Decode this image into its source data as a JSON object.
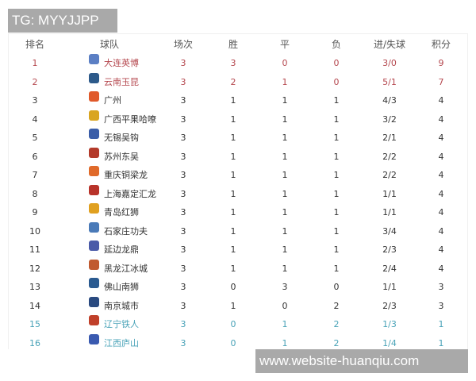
{
  "watermark_top": "TG: MYYJJPP",
  "watermark_bottom": "www.website-huanqiu.com",
  "headers": [
    "排名",
    "球队",
    "场次",
    "胜",
    "平",
    "负",
    "进/失球",
    "积分"
  ],
  "colors": {
    "promotion": "#b5484f",
    "relegation": "#4aa3b8",
    "normal": "#333333"
  },
  "rows": [
    {
      "rank": "1",
      "team": "大连英博",
      "p": "3",
      "w": "3",
      "d": "0",
      "l": "0",
      "gd": "3/0",
      "pts": "9",
      "zone": "red",
      "logo": "#5b7fc4"
    },
    {
      "rank": "2",
      "team": "云南玉昆",
      "p": "3",
      "w": "2",
      "d": "1",
      "l": "0",
      "gd": "5/1",
      "pts": "7",
      "zone": "red",
      "logo": "#2d5a8a"
    },
    {
      "rank": "3",
      "team": "广州",
      "p": "3",
      "w": "1",
      "d": "1",
      "l": "1",
      "gd": "4/3",
      "pts": "4",
      "zone": "",
      "logo": "#e0592a"
    },
    {
      "rank": "4",
      "team": "广西平果哈嘹",
      "p": "3",
      "w": "1",
      "d": "1",
      "l": "1",
      "gd": "3/2",
      "pts": "4",
      "zone": "",
      "logo": "#d9a520"
    },
    {
      "rank": "5",
      "team": "无锡吴钩",
      "p": "3",
      "w": "1",
      "d": "1",
      "l": "1",
      "gd": "2/1",
      "pts": "4",
      "zone": "",
      "logo": "#3a5da8"
    },
    {
      "rank": "6",
      "team": "苏州东吴",
      "p": "3",
      "w": "1",
      "d": "1",
      "l": "1",
      "gd": "2/2",
      "pts": "4",
      "zone": "",
      "logo": "#b33a2a"
    },
    {
      "rank": "7",
      "team": "重庆铜梁龙",
      "p": "3",
      "w": "1",
      "d": "1",
      "l": "1",
      "gd": "2/2",
      "pts": "4",
      "zone": "",
      "logo": "#e06a2a"
    },
    {
      "rank": "8",
      "team": "上海嘉定汇龙",
      "p": "3",
      "w": "1",
      "d": "1",
      "l": "1",
      "gd": "1/1",
      "pts": "4",
      "zone": "",
      "logo": "#b8332a"
    },
    {
      "rank": "9",
      "team": "青岛红狮",
      "p": "3",
      "w": "1",
      "d": "1",
      "l": "1",
      "gd": "1/1",
      "pts": "4",
      "zone": "",
      "logo": "#e0a020"
    },
    {
      "rank": "10",
      "team": "石家庄功夫",
      "p": "3",
      "w": "1",
      "d": "1",
      "l": "1",
      "gd": "3/4",
      "pts": "4",
      "zone": "",
      "logo": "#4a7ab8"
    },
    {
      "rank": "11",
      "team": "延边龙鼎",
      "p": "3",
      "w": "1",
      "d": "1",
      "l": "1",
      "gd": "2/3",
      "pts": "4",
      "zone": "",
      "logo": "#4a5aa8"
    },
    {
      "rank": "12",
      "team": "黑龙江冰城",
      "p": "3",
      "w": "1",
      "d": "1",
      "l": "1",
      "gd": "2/4",
      "pts": "4",
      "zone": "",
      "logo": "#c05a30"
    },
    {
      "rank": "13",
      "team": "佛山南狮",
      "p": "3",
      "w": "0",
      "d": "3",
      "l": "0",
      "gd": "1/1",
      "pts": "3",
      "zone": "",
      "logo": "#2a5a90"
    },
    {
      "rank": "14",
      "team": "南京城市",
      "p": "3",
      "w": "1",
      "d": "0",
      "l": "2",
      "gd": "2/3",
      "pts": "3",
      "zone": "",
      "logo": "#2a4a80"
    },
    {
      "rank": "15",
      "team": "辽宁铁人",
      "p": "3",
      "w": "0",
      "d": "1",
      "l": "2",
      "gd": "1/3",
      "pts": "1",
      "zone": "teal",
      "logo": "#c0402a"
    },
    {
      "rank": "16",
      "team": "江西庐山",
      "p": "3",
      "w": "0",
      "d": "1",
      "l": "2",
      "gd": "1/4",
      "pts": "1",
      "zone": "teal",
      "logo": "#3a5ab0"
    }
  ]
}
